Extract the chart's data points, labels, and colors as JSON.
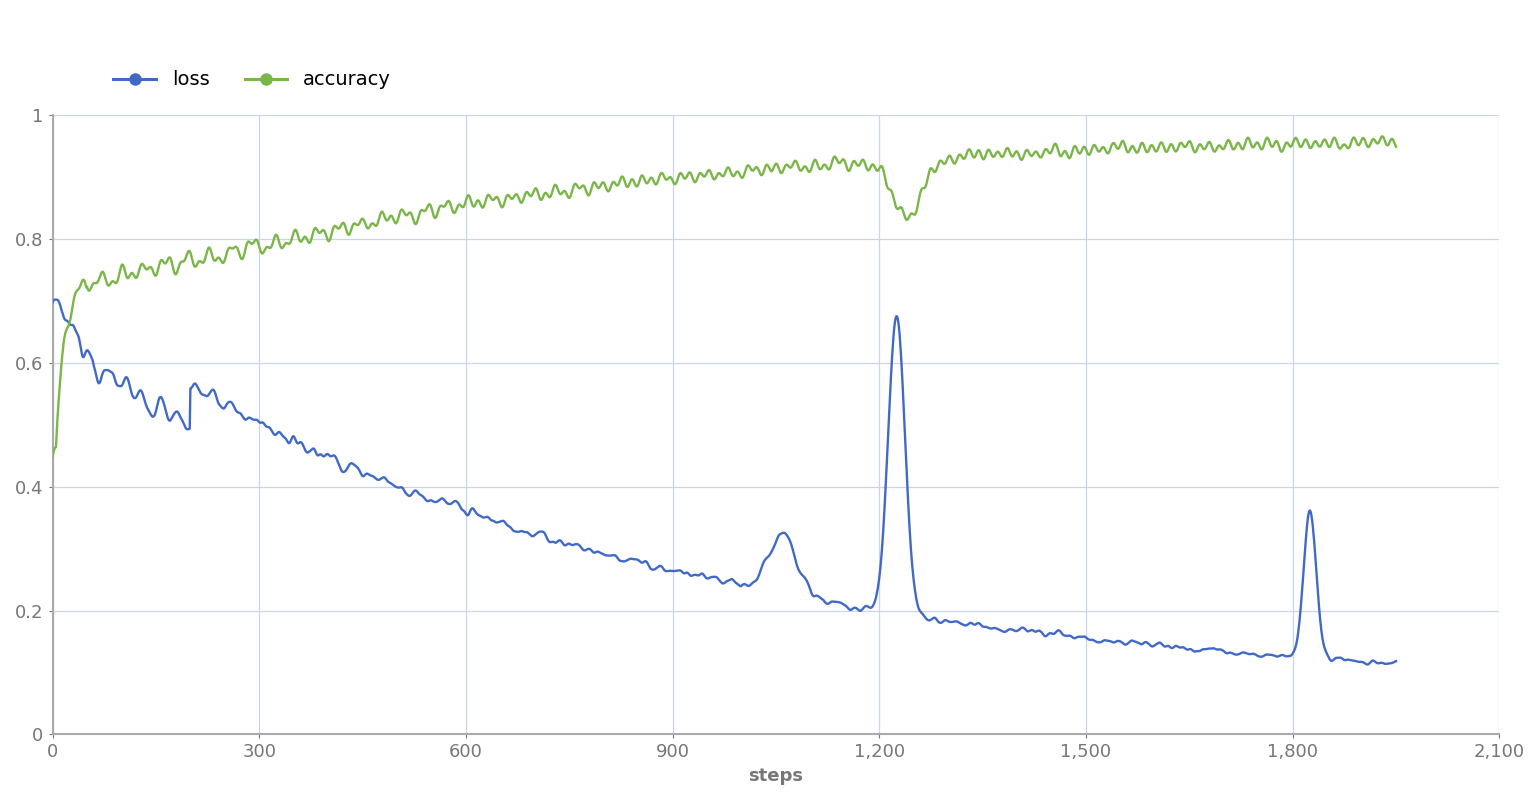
{
  "loss_color": "#4169c8",
  "accuracy_color": "#7ab648",
  "background_color": "#ffffff",
  "grid_color": "#ccd4ea",
  "axis_color": "#888888",
  "tick_color": "#777777",
  "xlabel": "steps",
  "ylabel": "",
  "xlim": [
    0,
    2100
  ],
  "ylim": [
    0,
    1.0
  ],
  "yticks": [
    0,
    0.2,
    0.4,
    0.6,
    0.8,
    1.0
  ],
  "xticks": [
    0,
    300,
    600,
    900,
    1200,
    1500,
    1800,
    2100
  ],
  "legend_labels": [
    "loss",
    "accuracy"
  ],
  "line_width": 1.7,
  "marker_size": 9,
  "label_fontsize": 13,
  "tick_fontsize": 13,
  "legend_fontsize": 14
}
